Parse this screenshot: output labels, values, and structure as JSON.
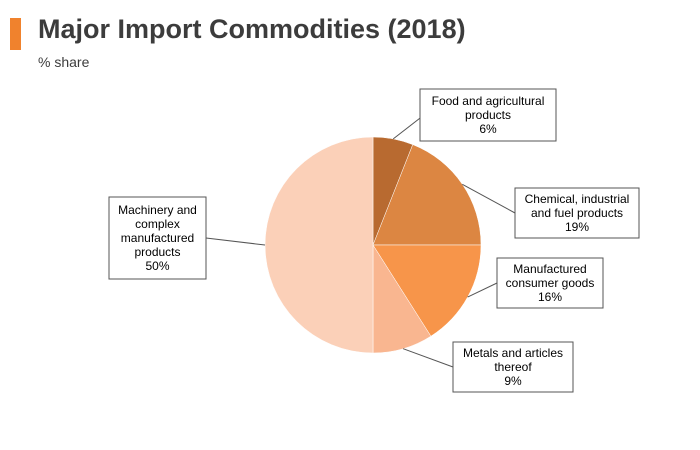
{
  "header": {
    "title": "Major Import Commodities (2018)",
    "subtitle": "% share",
    "accent_color": "#f0822d"
  },
  "chart_data": {
    "type": "pie",
    "title": "Major Import Commodities (2018)",
    "subtitle": "% share",
    "slices": [
      {
        "label": [
          "Food and agricultural",
          "products"
        ],
        "value": 6,
        "value_label": "6%",
        "color": "#b86a30"
      },
      {
        "label": [
          "Chemical, industrial",
          "and fuel products"
        ],
        "value": 19,
        "value_label": "19%",
        "color": "#dc8642"
      },
      {
        "label": [
          "Manufactured",
          "consumer goods"
        ],
        "value": 16,
        "value_label": "16%",
        "color": "#f7954a"
      },
      {
        "label": [
          "Metals and articles",
          "thereof"
        ],
        "value": 9,
        "value_label": "9%",
        "color": "#f9b690"
      },
      {
        "label": [
          "Machinery and",
          "complex",
          "manufactured",
          "products"
        ],
        "value": 50,
        "value_label": "50%",
        "color": "#fbd0b8"
      }
    ]
  }
}
